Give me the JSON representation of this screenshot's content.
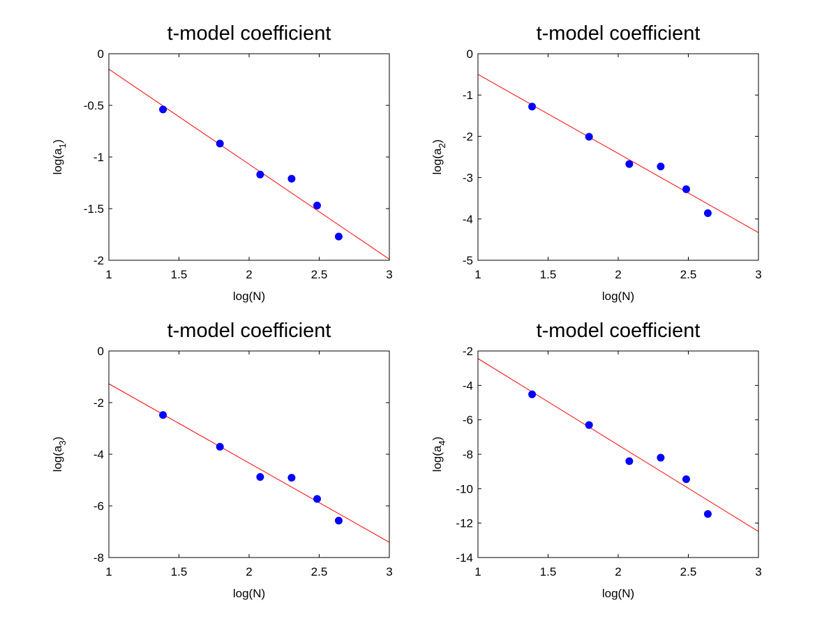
{
  "figure": {
    "background": "#ffffff"
  },
  "chart_data": [
    {
      "type": "scatter",
      "title": "t-model coefficient",
      "xlabel": "log(N)",
      "ylabel_base": "log(a",
      "ylabel_sub": "1",
      "ylabel_end": ")",
      "xlim": [
        1,
        3
      ],
      "ylim": [
        -2,
        0
      ],
      "xticks": [
        1,
        1.5,
        2,
        2.5,
        3
      ],
      "xtick_labels": [
        "1",
        "1.5",
        "2",
        "2.5",
        "3"
      ],
      "yticks": [
        -2,
        -1.5,
        -1,
        -0.5,
        0
      ],
      "ytick_labels": [
        "-2",
        "-1.5",
        "-1",
        "-0.5",
        "0"
      ],
      "grid": false,
      "series": [
        {
          "kind": "points",
          "color": "#0000ff",
          "x": [
            1.386,
            1.792,
            2.079,
            2.303,
            2.485,
            2.639
          ],
          "y": [
            -0.54,
            -0.87,
            -1.17,
            -1.21,
            -1.47,
            -1.77
          ]
        },
        {
          "kind": "line",
          "color": "#ff0000",
          "x": [
            1,
            3
          ],
          "y": [
            -0.15,
            -1.99
          ]
        }
      ]
    },
    {
      "type": "scatter",
      "title": "t-model coefficient",
      "xlabel": "log(N)",
      "ylabel_base": "log(a",
      "ylabel_sub": "2",
      "ylabel_end": ")",
      "xlim": [
        1,
        3
      ],
      "ylim": [
        -5,
        0
      ],
      "xticks": [
        1,
        1.5,
        2,
        2.5,
        3
      ],
      "xtick_labels": [
        "1",
        "1.5",
        "2",
        "2.5",
        "3"
      ],
      "yticks": [
        -5,
        -4,
        -3,
        -2,
        -1,
        0
      ],
      "ytick_labels": [
        "-5",
        "-4",
        "-3",
        "-2",
        "-1",
        "0"
      ],
      "grid": false,
      "series": [
        {
          "kind": "points",
          "color": "#0000ff",
          "x": [
            1.386,
            1.792,
            2.079,
            2.303,
            2.485,
            2.639
          ],
          "y": [
            -1.28,
            -2.01,
            -2.67,
            -2.73,
            -3.28,
            -3.86
          ]
        },
        {
          "kind": "line",
          "color": "#ff0000",
          "x": [
            1,
            3
          ],
          "y": [
            -0.5,
            -4.33
          ]
        }
      ]
    },
    {
      "type": "scatter",
      "title": "t-model coefficient",
      "xlabel": "log(N)",
      "ylabel_base": "log(a",
      "ylabel_sub": "3",
      "ylabel_end": ")",
      "xlim": [
        1,
        3
      ],
      "ylim": [
        -8,
        0
      ],
      "xticks": [
        1,
        1.5,
        2,
        2.5,
        3
      ],
      "xtick_labels": [
        "1",
        "1.5",
        "2",
        "2.5",
        "3"
      ],
      "yticks": [
        -8,
        -6,
        -4,
        -2,
        0
      ],
      "ytick_labels": [
        "-8",
        "-6",
        "-4",
        "-2",
        "0"
      ],
      "grid": false,
      "series": [
        {
          "kind": "points",
          "color": "#0000ff",
          "x": [
            1.386,
            1.792,
            2.079,
            2.303,
            2.485,
            2.639
          ],
          "y": [
            -2.48,
            -3.71,
            -4.88,
            -4.91,
            -5.73,
            -6.57
          ]
        },
        {
          "kind": "line",
          "color": "#ff0000",
          "x": [
            1,
            3
          ],
          "y": [
            -1.27,
            -7.41
          ]
        }
      ]
    },
    {
      "type": "scatter",
      "title": "t-model coefficient",
      "xlabel": "log(N)",
      "ylabel_base": "log(a",
      "ylabel_sub": "4",
      "ylabel_end": ")",
      "xlim": [
        1,
        3
      ],
      "ylim": [
        -14,
        -2
      ],
      "xticks": [
        1,
        1.5,
        2,
        2.5,
        3
      ],
      "xtick_labels": [
        "1",
        "1.5",
        "2",
        "2.5",
        "3"
      ],
      "yticks": [
        -14,
        -12,
        -10,
        -8,
        -6,
        -4,
        -2
      ],
      "ytick_labels": [
        "-14",
        "-12",
        "-10",
        "-8",
        "-6",
        "-4",
        "-2"
      ],
      "grid": false,
      "series": [
        {
          "kind": "points",
          "color": "#0000ff",
          "x": [
            1.386,
            1.792,
            2.079,
            2.303,
            2.485,
            2.639
          ],
          "y": [
            -4.52,
            -6.3,
            -8.4,
            -8.2,
            -9.45,
            -11.47
          ]
        },
        {
          "kind": "line",
          "color": "#ff0000",
          "x": [
            1,
            3
          ],
          "y": [
            -2.44,
            -12.49
          ]
        }
      ]
    }
  ]
}
